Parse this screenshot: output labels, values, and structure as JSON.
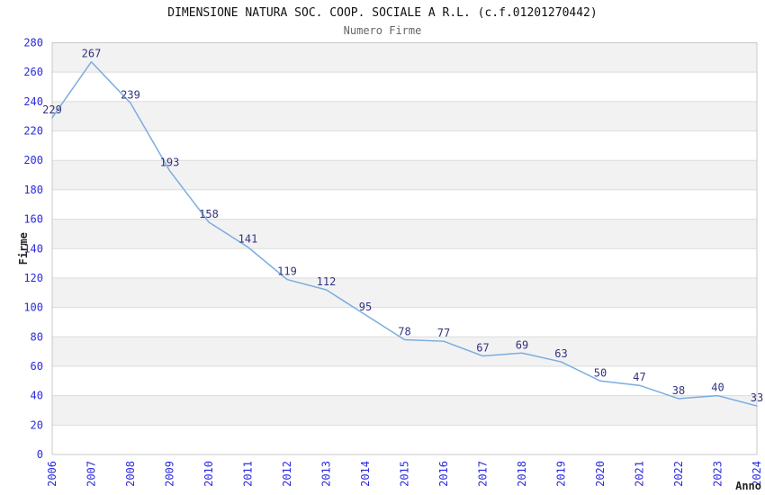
{
  "chart_data": {
    "type": "line",
    "title": "DIMENSIONE NATURA SOC. COOP. SOCIALE A R.L. (c.f.01201270442)",
    "subtitle": "Numero Firme",
    "xlabel": "Anno",
    "ylabel": "Firme",
    "categories": [
      "2006",
      "2007",
      "2008",
      "2009",
      "2010",
      "2011",
      "2012",
      "2013",
      "2014",
      "2015",
      "2016",
      "2017",
      "2018",
      "2019",
      "2020",
      "2021",
      "2022",
      "2023",
      "2024"
    ],
    "values": [
      229,
      267,
      239,
      193,
      158,
      141,
      119,
      112,
      95,
      78,
      77,
      67,
      69,
      63,
      50,
      47,
      38,
      40,
      33
    ],
    "ylim": [
      0,
      280
    ],
    "ytick_step": 20,
    "grid": "horizontal-bands",
    "legend": "none",
    "point_labels_visible": true,
    "colors": {
      "line": "#7aade0",
      "point_label": "#333380",
      "tick_label": "#2b2bdd",
      "band": "#f2f2f2",
      "gridline": "#dcdcdc",
      "border": "#c8c8c8",
      "title": "#111111",
      "subtitle": "#666666",
      "axis_title": "#222222",
      "background": "#ffffff"
    }
  }
}
